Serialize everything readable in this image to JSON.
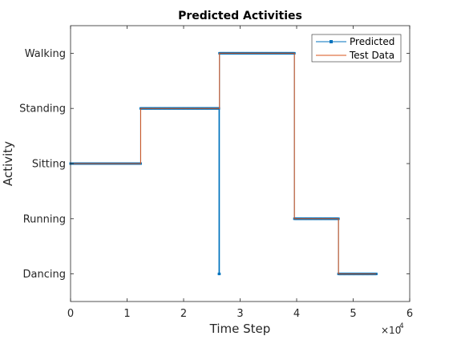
{
  "chart_data": {
    "type": "line",
    "title": "Predicted Activities",
    "xlabel": "Time Step",
    "ylabel": "Activity",
    "x_exponent_base": "×10",
    "x_exponent_power": "4",
    "xlim": [
      0,
      60000
    ],
    "x_ticks": [
      0,
      10000,
      20000,
      30000,
      40000,
      50000,
      60000
    ],
    "x_tick_labels": [
      "0",
      "1",
      "2",
      "3",
      "4",
      "5",
      "6"
    ],
    "categories": [
      "Dancing",
      "Running",
      "Sitting",
      "Standing",
      "Walking"
    ],
    "ylim": [
      0.5,
      5.5
    ],
    "grid": false,
    "legend_position": "top-right",
    "series": [
      {
        "name": "Predicted",
        "color": "#0072BD",
        "marker": "square",
        "steps": [
          {
            "x_start": 0,
            "x_end": 12400,
            "y": 3
          },
          {
            "x_start": 12400,
            "x_end": 26250,
            "y": 4
          },
          {
            "x_start": 26250,
            "x_end": 26350,
            "y": 1
          },
          {
            "x_start": 26350,
            "x_end": 39600,
            "y": 5
          },
          {
            "x_start": 39600,
            "x_end": 47400,
            "y": 2
          },
          {
            "x_start": 47400,
            "x_end": 54100,
            "y": 1
          }
        ]
      },
      {
        "name": "Test Data",
        "color": "#D95319",
        "marker": "none",
        "steps": [
          {
            "x_start": 0,
            "x_end": 12400,
            "y": 3
          },
          {
            "x_start": 12400,
            "x_end": 26350,
            "y": 4
          },
          {
            "x_start": 26350,
            "x_end": 39600,
            "y": 5
          },
          {
            "x_start": 39600,
            "x_end": 47400,
            "y": 2
          },
          {
            "x_start": 47400,
            "x_end": 54100,
            "y": 1
          }
        ]
      }
    ]
  }
}
